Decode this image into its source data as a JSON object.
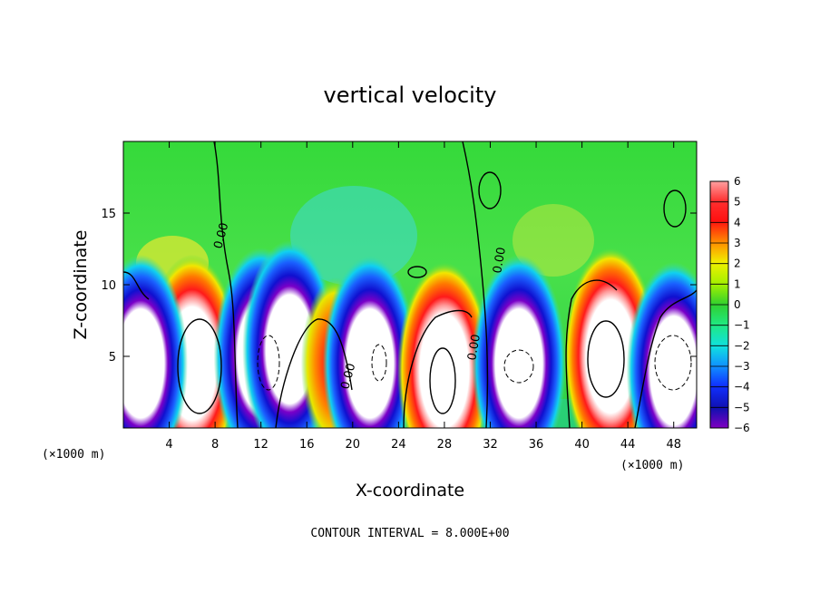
{
  "chart_data": {
    "type": "heatmap",
    "title": "vertical velocity",
    "xlabel": "X-coordinate",
    "ylabel": "Z-coordinate",
    "x_unit_left": "(×1000 m)",
    "x_unit_right": "(×1000 m)",
    "xlim": [
      0,
      50
    ],
    "ylim": [
      0,
      20
    ],
    "x_ticks": [
      4,
      8,
      12,
      16,
      20,
      24,
      28,
      32,
      36,
      40,
      44,
      48
    ],
    "y_ticks": [
      5,
      10,
      15
    ],
    "colorbar": {
      "min": -6,
      "max": 6,
      "ticks": [
        6,
        5,
        4,
        3,
        2,
        1,
        0,
        -1,
        -2,
        -3,
        -4,
        -5,
        -6
      ]
    },
    "contour_label": "0.00",
    "footer": "CONTOUR INTERVAL = 8.000E+00",
    "cells": [
      {
        "x": 6,
        "z": 4.5,
        "w": 6.5
      },
      {
        "x": 1.5,
        "z": 4.5,
        "w": -5.5
      },
      {
        "x": 12,
        "z": 5,
        "w": -5.5
      },
      {
        "x": 14.5,
        "z": 5.5,
        "w": -6
      },
      {
        "x": 18.5,
        "z": 4.5,
        "w": 5
      },
      {
        "x": 21.5,
        "z": 4.5,
        "w": -6
      },
      {
        "x": 28,
        "z": 4,
        "w": 6.5
      },
      {
        "x": 34.5,
        "z": 4.5,
        "w": -6.5
      },
      {
        "x": 42.5,
        "z": 5,
        "w": 6.5
      },
      {
        "x": 48,
        "z": 4,
        "w": -6
      }
    ]
  }
}
